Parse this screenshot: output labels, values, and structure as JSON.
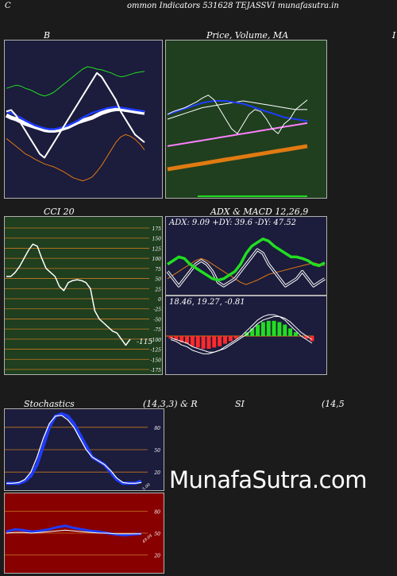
{
  "header": {
    "left_letter": "C",
    "title": "ommon  Indicators 531628  TEJASSVI munafasutra.in"
  },
  "watermark": "MunafaSutra.com",
  "colors": {
    "page_bg": "#1b1b1b",
    "navy": "#1c1c3c",
    "green_panel": "#1f3f1f",
    "red_panel": "#880000",
    "grid_orange": "#c87820",
    "white": "#ffffff",
    "blue": "#1f3cff",
    "green_line": "#22dd22",
    "orange_line": "#e07a12"
  },
  "bollinger": {
    "title": "B",
    "chart_data": {
      "type": "line",
      "title": "B",
      "series": [
        {
          "color": "#ffffff",
          "values": [
            150,
            148,
            155,
            165,
            175,
            185,
            195,
            205,
            210,
            200,
            190,
            180,
            170,
            160,
            150,
            140,
            130,
            120,
            110,
            100,
            105,
            115,
            125,
            135,
            150,
            160,
            170,
            180,
            185,
            190
          ]
        },
        {
          "color": "#22dd22",
          "values": [
            120,
            118,
            116,
            117,
            120,
            122,
            125,
            128,
            130,
            128,
            125,
            120,
            115,
            110,
            105,
            100,
            95,
            92,
            93,
            95,
            96,
            98,
            100,
            103,
            105,
            104,
            102,
            100,
            99,
            98
          ]
        },
        {
          "color": "#ffffff",
          "values": [
            155,
            158,
            160,
            163,
            166,
            168,
            170,
            172,
            174,
            175,
            175,
            174,
            172,
            170,
            167,
            164,
            162,
            160,
            158,
            155,
            152,
            150,
            148,
            147,
            147,
            148,
            149,
            150,
            151,
            152
          ]
        },
        {
          "color": "#1f3cff",
          "values": [
            150,
            152,
            155,
            158,
            162,
            165,
            168,
            170,
            172,
            173,
            173,
            172,
            170,
            168,
            165,
            162,
            158,
            155,
            152,
            150,
            148,
            146,
            145,
            144,
            145,
            146,
            147,
            148,
            149,
            150
          ]
        },
        {
          "color": "#e07a12",
          "values": [
            185,
            190,
            195,
            200,
            205,
            208,
            212,
            215,
            218,
            220,
            222,
            225,
            228,
            232,
            236,
            238,
            240,
            238,
            235,
            228,
            220,
            210,
            200,
            190,
            183,
            180,
            182,
            186,
            192,
            200
          ]
        }
      ]
    }
  },
  "price_ma": {
    "title": "Price,  Volume,  MA",
    "chart_data": {
      "type": "line",
      "title": "Price,  Volume,  MA",
      "series": [
        {
          "color": "#e07a12",
          "values": [
            88,
            89,
            90,
            91,
            92,
            93,
            94,
            95,
            96,
            97,
            98,
            99,
            100,
            101,
            102,
            103,
            104,
            105,
            106,
            107,
            108,
            109,
            110,
            111,
            112
          ]
        },
        {
          "color": "#ff80ff",
          "values": [
            112,
            113,
            114,
            115,
            116,
            117,
            118,
            119,
            120,
            121,
            122,
            123,
            124,
            125,
            126,
            127,
            128,
            129,
            130,
            131,
            132,
            133,
            134,
            135,
            136
          ]
        },
        {
          "color": "#ffffff",
          "values": [
            140,
            142,
            144,
            146,
            148,
            150,
            152,
            153,
            154,
            155,
            156,
            157,
            158,
            159,
            158,
            157,
            156,
            155,
            154,
            153,
            152,
            151,
            150,
            150,
            150
          ]
        },
        {
          "color": "#1f3cff",
          "values": [
            145,
            147,
            149,
            151,
            153,
            155,
            157,
            158,
            159,
            159,
            159,
            158,
            157,
            156,
            154,
            152,
            150,
            148,
            146,
            144,
            142,
            141,
            140,
            139,
            138
          ]
        },
        {
          "color": "#ffffff",
          "values": [
            145,
            148,
            150,
            152,
            155,
            158,
            162,
            165,
            160,
            150,
            140,
            130,
            125,
            135,
            145,
            150,
            148,
            140,
            130,
            125,
            135,
            140,
            150,
            155,
            160
          ]
        }
      ]
    }
  },
  "cci": {
    "title": "CCI 20",
    "value_label": "-115",
    "tick_labels": [
      "175",
      "150",
      "125",
      "100",
      "75",
      "50",
      "25",
      "0",
      "-25",
      "-50",
      "-75",
      "-100",
      "-125",
      "-150",
      "-175"
    ],
    "chart_data": {
      "type": "line",
      "title": "CCI 20",
      "ylim": [
        -175,
        175
      ],
      "series": [
        {
          "color": "#ffffff",
          "values": [
            55,
            55,
            65,
            80,
            100,
            120,
            135,
            130,
            100,
            75,
            65,
            55,
            30,
            20,
            40,
            45,
            47,
            45,
            40,
            25,
            -30,
            -50,
            -60,
            -70,
            -80,
            -85,
            -100,
            -115,
            -100
          ]
        }
      ]
    }
  },
  "adx": {
    "title": "ADX  & MACD 12,26,9",
    "readout": "ADX: 9.09 +DY: 39.6  -DY: 47.52",
    "macd_readout": "18.46,  19.27,  -0.81",
    "chart_data": {
      "type": "line",
      "title": "ADX  & MACD 12,26,9",
      "series": [
        {
          "color": "#22dd22",
          "values": [
            40,
            45,
            50,
            48,
            40,
            35,
            30,
            25,
            20,
            18,
            20,
            25,
            30,
            40,
            55,
            65,
            70,
            75,
            72,
            65,
            60,
            55,
            50,
            50,
            48,
            45,
            40,
            38,
            42
          ]
        },
        {
          "color": "#e07a12",
          "values": [
            20,
            25,
            30,
            35,
            40,
            45,
            48,
            45,
            40,
            35,
            30,
            25,
            20,
            15,
            12,
            15,
            18,
            22,
            26,
            28,
            30,
            32,
            34,
            36,
            38,
            40,
            42,
            40,
            38
          ]
        },
        {
          "color": "#ffffff",
          "values": [
            30,
            20,
            10,
            20,
            30,
            40,
            45,
            40,
            30,
            15,
            10,
            15,
            20,
            30,
            40,
            50,
            60,
            55,
            40,
            30,
            20,
            10,
            15,
            20,
            30,
            20,
            10,
            15,
            20
          ]
        }
      ]
    }
  },
  "stochastics": {
    "title": "Stochastics",
    "params": "(14,3,3) & R",
    "value_label": "5.00",
    "ticks": [
      "80",
      "50",
      "20"
    ],
    "chart_data": {
      "type": "line",
      "title": "Stochastics",
      "ylim": [
        0,
        100
      ],
      "series": [
        {
          "color": "#1f3cff",
          "values": [
            5,
            5,
            5,
            8,
            15,
            30,
            55,
            80,
            95,
            98,
            95,
            85,
            70,
            55,
            40,
            35,
            30,
            20,
            10,
            5,
            5,
            5,
            8
          ]
        },
        {
          "color": "#ffffff",
          "values": [
            5,
            5,
            6,
            10,
            20,
            40,
            65,
            85,
            95,
            96,
            90,
            80,
            65,
            50,
            40,
            35,
            30,
            22,
            12,
            6,
            5,
            5,
            6
          ]
        }
      ]
    }
  },
  "rsi": {
    "title": "SI",
    "params": "(14,5",
    "value_label": "49.04",
    "ticks": [
      "80",
      "50",
      "20"
    ],
    "chart_data": {
      "type": "line",
      "title": "SI",
      "ylim": [
        0,
        100
      ],
      "series": [
        {
          "color": "#1f3cff",
          "values": [
            52,
            55,
            54,
            52,
            53,
            55,
            58,
            60,
            57,
            55,
            53,
            52,
            50,
            48,
            47,
            48,
            49
          ]
        },
        {
          "color": "#ffffff",
          "values": [
            50,
            51,
            51,
            50,
            51,
            52,
            53,
            54,
            53,
            52,
            51,
            50,
            50,
            49,
            49,
            49,
            49
          ]
        }
      ]
    }
  }
}
